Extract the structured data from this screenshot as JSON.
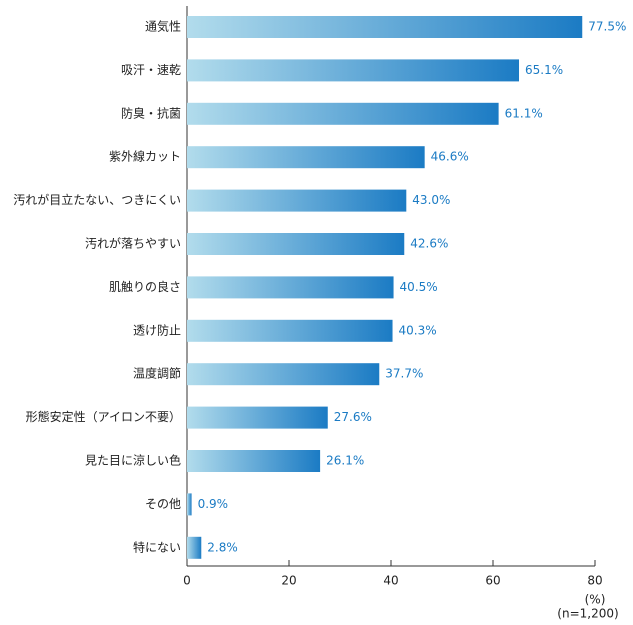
{
  "chart_data": {
    "type": "barh",
    "categories": [
      "通気性",
      "吸汗・速乾",
      "防臭・抗菌",
      "紫外線カット",
      "汚れが目立たない、つきにくい",
      "汚れが落ちやすい",
      "肌触りの良さ",
      "透け防止",
      "温度調節",
      "形態安定性（アイロン不要）",
      "見た目に涼しい色",
      "その他",
      "特にない"
    ],
    "values": [
      77.5,
      65.1,
      61.1,
      46.6,
      43.0,
      42.6,
      40.5,
      40.3,
      37.7,
      27.6,
      26.1,
      0.9,
      2.8
    ],
    "value_labels": [
      "77.5%",
      "65.1%",
      "61.1%",
      "46.6%",
      "43.0%",
      "42.6%",
      "40.5%",
      "40.3%",
      "37.7%",
      "27.6%",
      "26.1%",
      "0.9%",
      "2.8%"
    ],
    "color": "#1b7bc4",
    "xlim": [
      0,
      80
    ],
    "xticks": [
      0,
      20,
      40,
      60,
      80
    ],
    "xlabel": "(%)",
    "note": "(n=1,200)"
  }
}
